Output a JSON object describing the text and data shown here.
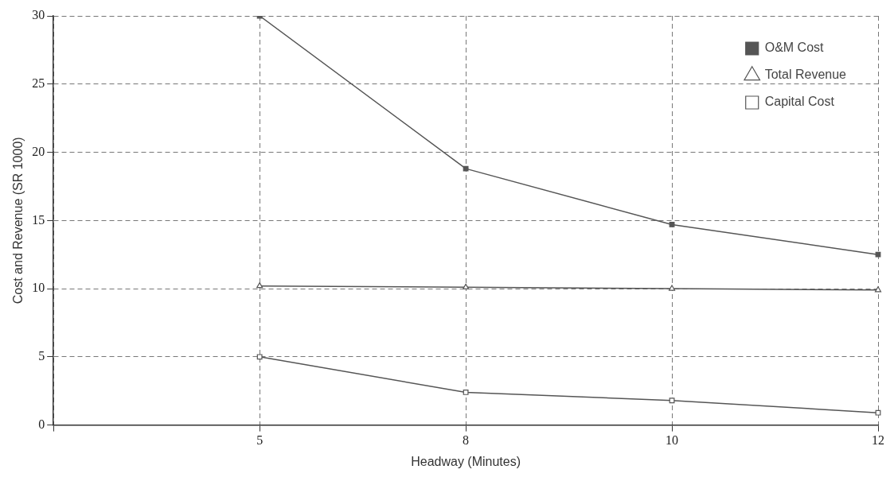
{
  "chart_data": {
    "type": "line",
    "xlabel": "Headway (Minutes)",
    "ylabel": "Cost and Revenue (SR 1000)",
    "categories": [
      null,
      "5",
      "8",
      "10",
      "12"
    ],
    "ylim": [
      0,
      30
    ],
    "yticks": [
      0,
      5,
      10,
      15,
      20,
      25,
      30
    ],
    "grid": true,
    "legend": "top right",
    "line_style": "solid",
    "series": [
      {
        "name": "O&M Cost",
        "color": "#555555",
        "marker": "square",
        "values": [
          null,
          30,
          18.8,
          14.7,
          12.5
        ]
      },
      {
        "name": "Total Revenue",
        "color": "#555555",
        "marker": "triangle",
        "values": [
          null,
          10.2,
          10.1,
          10.0,
          9.9
        ]
      },
      {
        "name": "Capital Cost",
        "color": "#555555",
        "marker": "square-open",
        "values": [
          null,
          5,
          2.4,
          1.8,
          0.9
        ]
      }
    ]
  }
}
